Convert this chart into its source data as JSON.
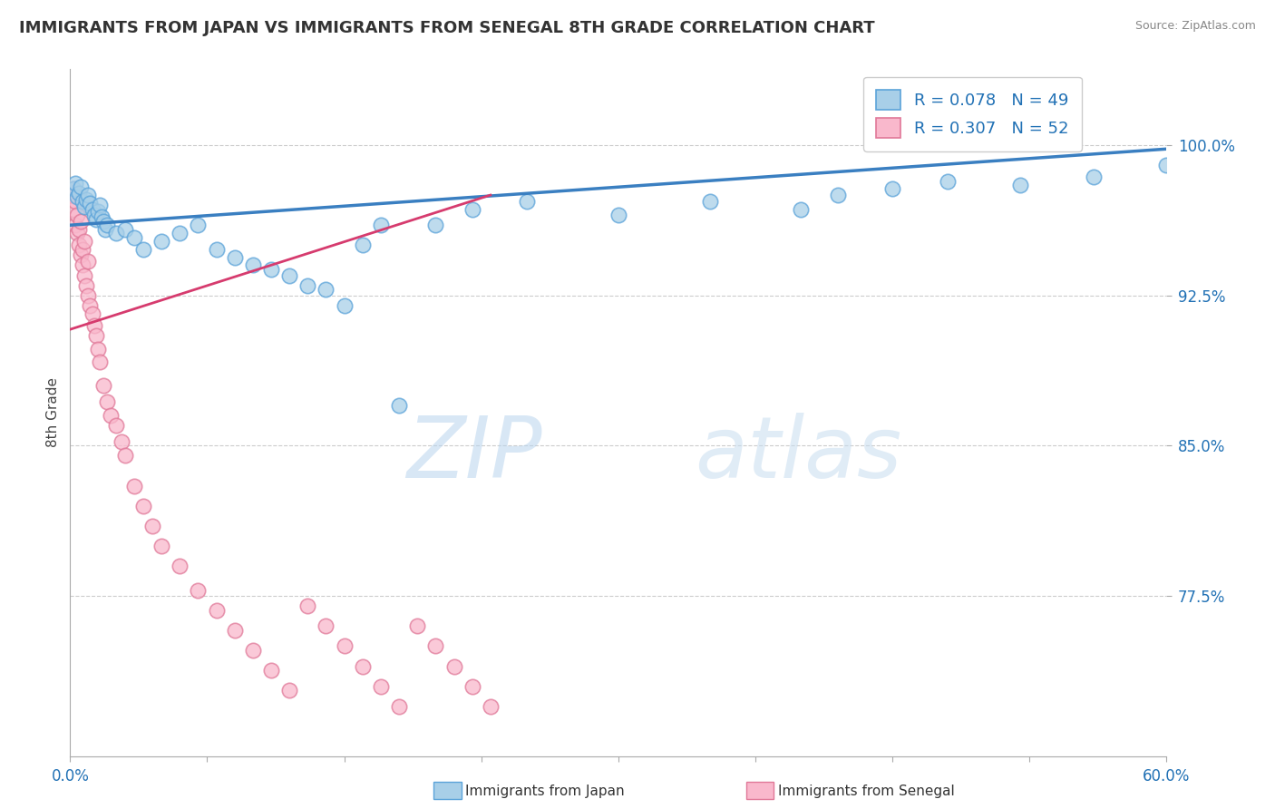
{
  "title": "IMMIGRANTS FROM JAPAN VS IMMIGRANTS FROM SENEGAL 8TH GRADE CORRELATION CHART",
  "source": "Source: ZipAtlas.com",
  "ylabel": "8th Grade",
  "watermark_zip": "ZIP",
  "watermark_atlas": "atlas",
  "xlim": [
    0.0,
    0.6
  ],
  "ylim": [
    0.695,
    1.038
  ],
  "yticks": [
    0.775,
    0.85,
    0.925,
    1.0
  ],
  "ytick_labels": [
    "77.5%",
    "85.0%",
    "92.5%",
    "100.0%"
  ],
  "xtick_left_label": "0.0%",
  "xtick_right_label": "60.0%",
  "legend_japan": "Immigrants from Japan",
  "legend_senegal": "Immigrants from Senegal",
  "R_japan": 0.078,
  "N_japan": 49,
  "R_senegal": 0.307,
  "N_senegal": 52,
  "japan_facecolor": "#a8cfe8",
  "japan_edgecolor": "#5ba3d9",
  "senegal_facecolor": "#f9b8cc",
  "senegal_edgecolor": "#e07898",
  "trend_japan_color": "#3a7fc1",
  "trend_senegal_color": "#d63b6e",
  "japan_x": [
    0.002,
    0.003,
    0.004,
    0.005,
    0.006,
    0.007,
    0.008,
    0.009,
    0.01,
    0.011,
    0.012,
    0.013,
    0.014,
    0.015,
    0.016,
    0.017,
    0.018,
    0.019,
    0.02,
    0.025,
    0.03,
    0.035,
    0.04,
    0.05,
    0.06,
    0.07,
    0.08,
    0.09,
    0.1,
    0.11,
    0.12,
    0.13,
    0.14,
    0.15,
    0.16,
    0.17,
    0.18,
    0.2,
    0.22,
    0.25,
    0.3,
    0.35,
    0.4,
    0.42,
    0.45,
    0.48,
    0.52,
    0.56,
    0.6
  ],
  "japan_y": [
    0.978,
    0.981,
    0.974,
    0.976,
    0.979,
    0.972,
    0.969,
    0.973,
    0.975,
    0.971,
    0.968,
    0.965,
    0.963,
    0.967,
    0.97,
    0.964,
    0.962,
    0.958,
    0.96,
    0.956,
    0.958,
    0.954,
    0.948,
    0.952,
    0.956,
    0.96,
    0.948,
    0.944,
    0.94,
    0.938,
    0.935,
    0.93,
    0.928,
    0.92,
    0.95,
    0.96,
    0.87,
    0.96,
    0.968,
    0.972,
    0.965,
    0.972,
    0.968,
    0.975,
    0.978,
    0.982,
    0.98,
    0.984,
    0.99
  ],
  "senegal_x": [
    0.001,
    0.002,
    0.002,
    0.003,
    0.003,
    0.004,
    0.004,
    0.005,
    0.005,
    0.006,
    0.006,
    0.007,
    0.007,
    0.008,
    0.008,
    0.009,
    0.01,
    0.01,
    0.011,
    0.012,
    0.013,
    0.014,
    0.015,
    0.016,
    0.018,
    0.02,
    0.022,
    0.025,
    0.028,
    0.03,
    0.035,
    0.04,
    0.045,
    0.05,
    0.06,
    0.07,
    0.08,
    0.09,
    0.1,
    0.11,
    0.12,
    0.13,
    0.14,
    0.15,
    0.16,
    0.17,
    0.18,
    0.19,
    0.2,
    0.21,
    0.22,
    0.23
  ],
  "senegal_y": [
    0.975,
    0.978,
    0.968,
    0.972,
    0.96,
    0.965,
    0.956,
    0.958,
    0.95,
    0.962,
    0.945,
    0.948,
    0.94,
    0.935,
    0.952,
    0.93,
    0.942,
    0.925,
    0.92,
    0.916,
    0.91,
    0.905,
    0.898,
    0.892,
    0.88,
    0.872,
    0.865,
    0.86,
    0.852,
    0.845,
    0.83,
    0.82,
    0.81,
    0.8,
    0.79,
    0.778,
    0.768,
    0.758,
    0.748,
    0.738,
    0.728,
    0.77,
    0.76,
    0.75,
    0.74,
    0.73,
    0.72,
    0.76,
    0.75,
    0.74,
    0.73,
    0.72
  ],
  "japan_trend_x": [
    0.0,
    0.6
  ],
  "japan_trend_y": [
    0.96,
    0.998
  ],
  "senegal_trend_x": [
    0.0,
    0.23
  ],
  "senegal_trend_y": [
    0.908,
    0.975
  ]
}
